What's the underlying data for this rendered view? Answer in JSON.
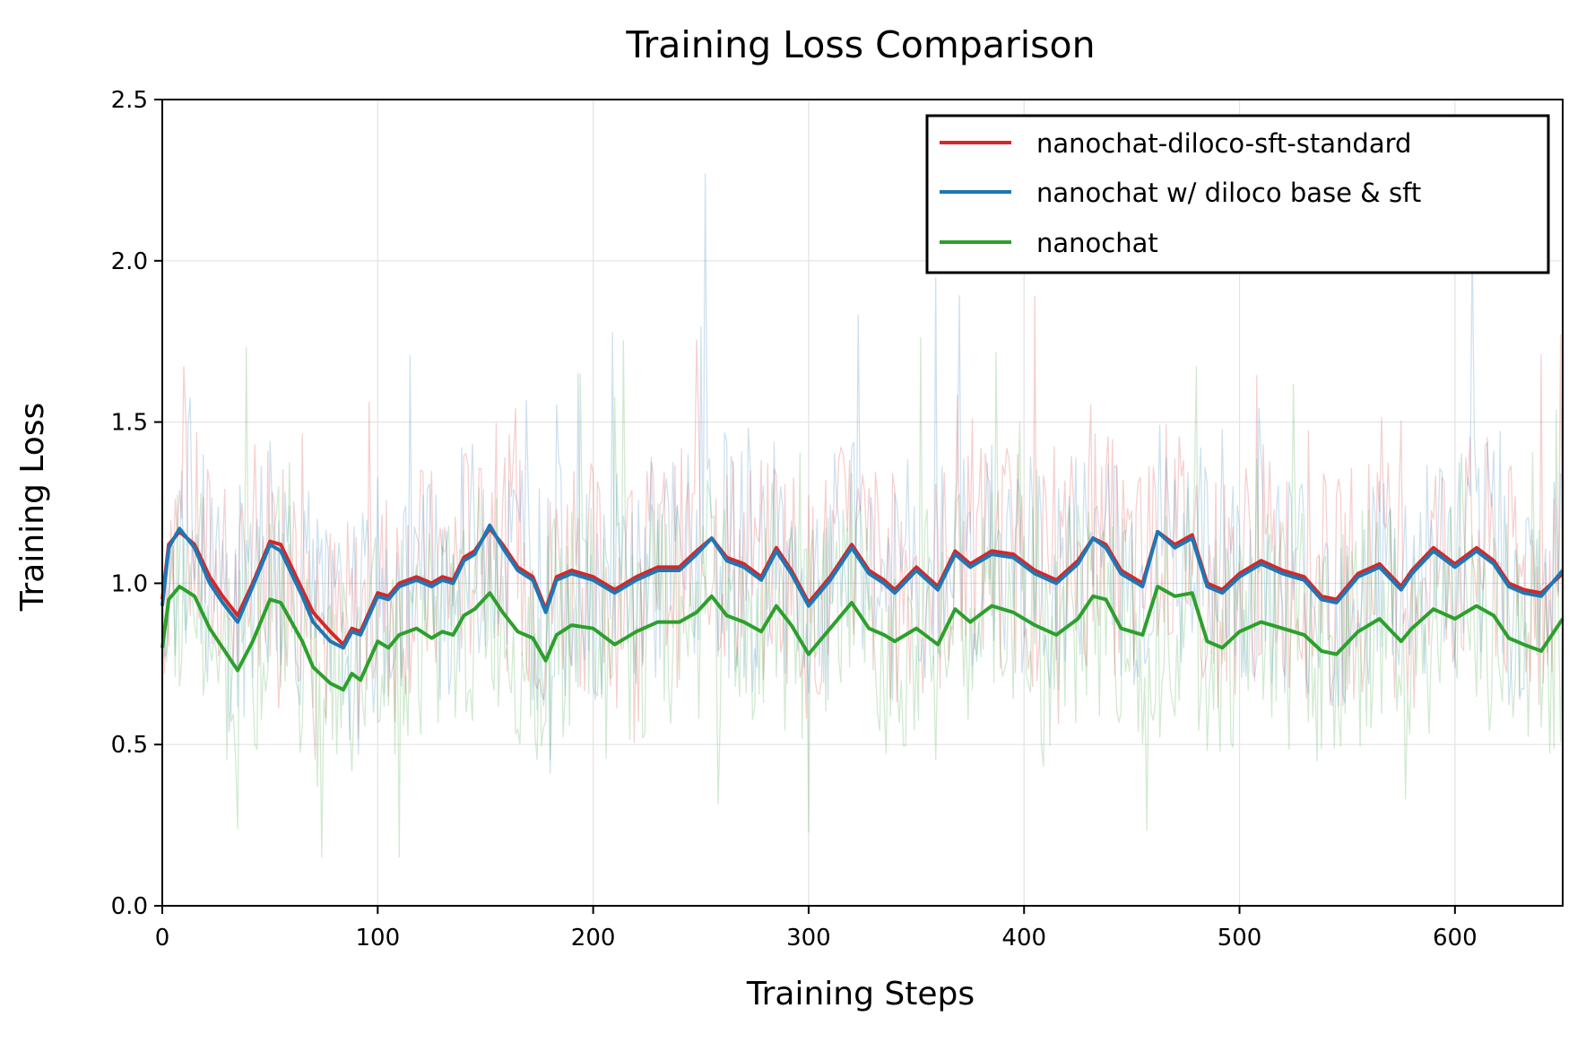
{
  "chart_data": {
    "type": "line",
    "title": "Training Loss Comparison",
    "xlabel": "Training Steps",
    "ylabel": "Training Loss",
    "xlim": [
      0,
      650
    ],
    "ylim": [
      0.0,
      2.5
    ],
    "xticks": [
      0,
      100,
      200,
      300,
      400,
      500,
      600
    ],
    "xtick_labels": [
      "0",
      "100",
      "200",
      "300",
      "400",
      "500",
      "600"
    ],
    "yticks": [
      0.0,
      0.5,
      1.0,
      1.5,
      2.0,
      2.5
    ],
    "ytick_labels": [
      "0.0",
      "0.5",
      "1.0",
      "1.5",
      "2.0",
      "2.5"
    ],
    "grid": true,
    "legend_position": "top-right",
    "raw_traces_shown": "faint per-step raw loss behind each smoothed line",
    "series": [
      {
        "name": "nanochat-diloco-sft-standard",
        "color": "#d62728",
        "x": [
          0,
          3,
          8,
          15,
          22,
          28,
          35,
          42,
          50,
          55,
          60,
          65,
          70,
          78,
          84,
          88,
          92,
          100,
          105,
          110,
          118,
          125,
          130,
          135,
          140,
          145,
          152,
          158,
          165,
          172,
          178,
          183,
          190,
          200,
          210,
          220,
          230,
          240,
          248,
          255,
          262,
          270,
          278,
          285,
          292,
          300,
          310,
          320,
          328,
          335,
          340,
          350,
          360,
          368,
          375,
          385,
          395,
          405,
          415,
          425,
          432,
          438,
          445,
          455,
          462,
          470,
          478,
          485,
          492,
          500,
          510,
          520,
          530,
          538,
          545,
          555,
          565,
          575,
          580,
          590,
          600,
          610,
          618,
          625,
          632,
          640,
          650
        ],
        "y": [
          0.95,
          1.12,
          1.16,
          1.12,
          1.02,
          0.96,
          0.9,
          1.0,
          1.13,
          1.12,
          1.05,
          0.98,
          0.91,
          0.85,
          0.81,
          0.86,
          0.85,
          0.97,
          0.96,
          1.0,
          1.02,
          1.0,
          1.02,
          1.01,
          1.08,
          1.1,
          1.17,
          1.12,
          1.05,
          1.02,
          0.92,
          1.02,
          1.04,
          1.02,
          0.98,
          1.02,
          1.05,
          1.05,
          1.1,
          1.14,
          1.08,
          1.06,
          1.02,
          1.11,
          1.04,
          0.94,
          1.02,
          1.12,
          1.04,
          1.01,
          0.98,
          1.05,
          0.99,
          1.1,
          1.06,
          1.1,
          1.09,
          1.04,
          1.01,
          1.07,
          1.14,
          1.12,
          1.04,
          1.0,
          1.16,
          1.12,
          1.15,
          1.0,
          0.98,
          1.03,
          1.07,
          1.04,
          1.02,
          0.96,
          0.95,
          1.03,
          1.06,
          0.99,
          1.04,
          1.11,
          1.06,
          1.11,
          1.07,
          1.0,
          0.98,
          0.97,
          1.03
        ]
      },
      {
        "name": "nanochat w/ diloco base & sft",
        "color": "#1f77b4",
        "x": [
          0,
          3,
          8,
          15,
          22,
          28,
          35,
          42,
          50,
          55,
          60,
          65,
          70,
          78,
          84,
          88,
          92,
          100,
          105,
          110,
          118,
          125,
          130,
          135,
          140,
          145,
          152,
          158,
          165,
          172,
          178,
          183,
          190,
          200,
          210,
          220,
          230,
          240,
          248,
          255,
          262,
          270,
          278,
          285,
          292,
          300,
          310,
          320,
          328,
          335,
          340,
          350,
          360,
          368,
          375,
          385,
          395,
          405,
          415,
          425,
          432,
          438,
          445,
          455,
          462,
          470,
          478,
          485,
          492,
          500,
          510,
          520,
          530,
          538,
          545,
          555,
          565,
          575,
          580,
          590,
          600,
          610,
          618,
          625,
          632,
          640,
          650
        ],
        "y": [
          0.93,
          1.11,
          1.17,
          1.11,
          1.0,
          0.94,
          0.88,
          0.99,
          1.12,
          1.1,
          1.03,
          0.96,
          0.88,
          0.82,
          0.8,
          0.85,
          0.84,
          0.96,
          0.95,
          0.99,
          1.01,
          0.99,
          1.01,
          1.0,
          1.07,
          1.09,
          1.18,
          1.11,
          1.04,
          1.01,
          0.91,
          1.01,
          1.03,
          1.01,
          0.97,
          1.01,
          1.04,
          1.04,
          1.09,
          1.14,
          1.07,
          1.05,
          1.01,
          1.1,
          1.03,
          0.93,
          1.01,
          1.11,
          1.03,
          1.0,
          0.97,
          1.04,
          0.98,
          1.09,
          1.05,
          1.09,
          1.08,
          1.03,
          1.0,
          1.06,
          1.14,
          1.11,
          1.03,
          0.99,
          1.16,
          1.11,
          1.14,
          0.99,
          0.97,
          1.02,
          1.06,
          1.03,
          1.01,
          0.95,
          0.94,
          1.02,
          1.05,
          0.98,
          1.03,
          1.1,
          1.05,
          1.1,
          1.06,
          0.99,
          0.97,
          0.96,
          1.04
        ]
      },
      {
        "name": "nanochat",
        "color": "#2ca02c",
        "x": [
          0,
          3,
          8,
          15,
          22,
          28,
          35,
          42,
          50,
          55,
          60,
          65,
          70,
          78,
          84,
          88,
          92,
          100,
          105,
          110,
          118,
          125,
          130,
          135,
          140,
          145,
          152,
          158,
          165,
          172,
          178,
          183,
          190,
          200,
          210,
          220,
          230,
          240,
          248,
          255,
          262,
          270,
          278,
          285,
          292,
          300,
          310,
          320,
          328,
          335,
          340,
          350,
          360,
          368,
          375,
          385,
          395,
          405,
          415,
          425,
          432,
          438,
          445,
          455,
          462,
          470,
          478,
          485,
          492,
          500,
          510,
          520,
          530,
          538,
          545,
          555,
          565,
          575,
          580,
          590,
          600,
          610,
          618,
          625,
          632,
          640,
          650
        ],
        "y": [
          0.8,
          0.95,
          0.99,
          0.96,
          0.86,
          0.8,
          0.73,
          0.82,
          0.95,
          0.94,
          0.88,
          0.82,
          0.74,
          0.69,
          0.67,
          0.72,
          0.7,
          0.82,
          0.8,
          0.84,
          0.86,
          0.83,
          0.85,
          0.84,
          0.9,
          0.92,
          0.97,
          0.91,
          0.85,
          0.83,
          0.76,
          0.84,
          0.87,
          0.86,
          0.81,
          0.85,
          0.88,
          0.88,
          0.91,
          0.96,
          0.9,
          0.88,
          0.85,
          0.93,
          0.87,
          0.78,
          0.86,
          0.94,
          0.86,
          0.84,
          0.82,
          0.86,
          0.81,
          0.92,
          0.88,
          0.93,
          0.91,
          0.87,
          0.84,
          0.89,
          0.96,
          0.95,
          0.86,
          0.84,
          0.99,
          0.96,
          0.97,
          0.82,
          0.8,
          0.85,
          0.88,
          0.86,
          0.84,
          0.79,
          0.78,
          0.85,
          0.89,
          0.82,
          0.86,
          0.92,
          0.89,
          0.93,
          0.9,
          0.83,
          0.81,
          0.79,
          0.89
        ]
      }
    ]
  }
}
